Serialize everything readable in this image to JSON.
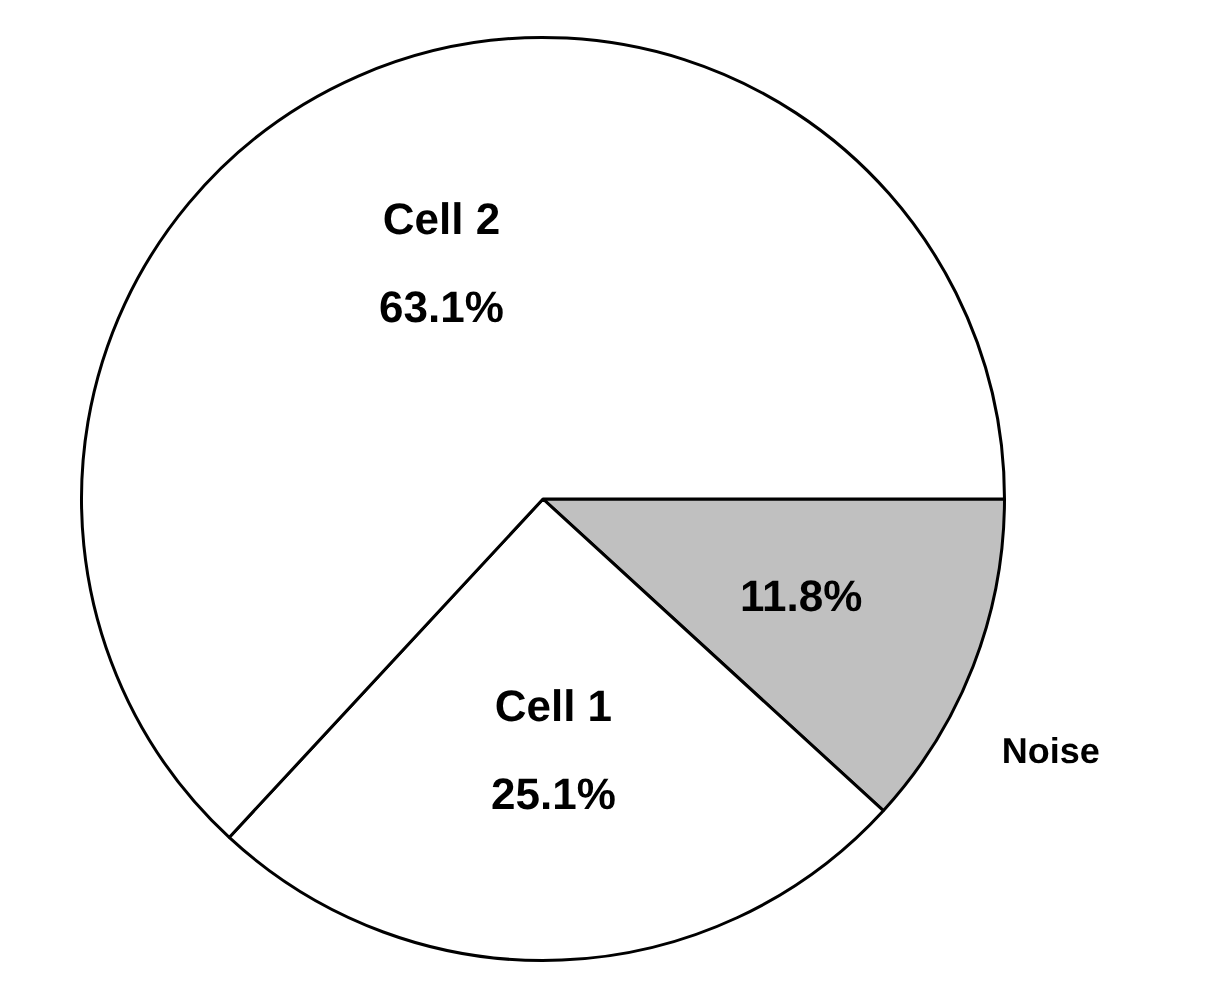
{
  "chart_data": {
    "type": "pie",
    "categories": [
      "Noise",
      "Cell 1",
      "Cell 2"
    ],
    "values": [
      11.8,
      25.1,
      63.1
    ],
    "value_labels": [
      "11.8%",
      "25.1%",
      "63.1%"
    ],
    "colors": [
      "#c0c0c0",
      "#ffffff",
      "#ffffff"
    ],
    "legend": false
  }
}
